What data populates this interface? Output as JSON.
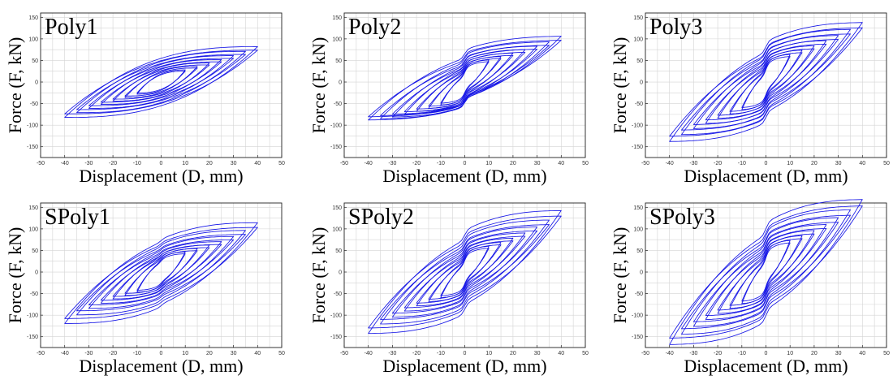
{
  "chart_data": [
    {
      "type": "line",
      "title": "Poly1",
      "xlabel": "Displacement (D, mm)",
      "ylabel": "Force (F, kN)",
      "xlim": [
        -50,
        50
      ],
      "ylim": [
        -175,
        160
      ],
      "grid": true,
      "x_ticks": [
        -50,
        -40,
        -30,
        -20,
        -10,
        0,
        10,
        20,
        30,
        40,
        50
      ],
      "y_ticks": [
        -150,
        -100,
        -50,
        0,
        50,
        100,
        150
      ],
      "series": [
        {
          "amplitudes_mm": [
            10,
            15,
            20,
            25,
            30,
            35,
            40
          ],
          "peak_force_pos_kN": [
            28,
            36,
            44,
            52,
            61,
            71,
            82
          ],
          "peak_force_neg_kN": [
            -28,
            -36,
            -44,
            -52,
            -61,
            -71,
            -82
          ],
          "slip_force_kN": 0
        }
      ]
    },
    {
      "type": "line",
      "title": "Poly2",
      "xlabel": "Displacement (D, mm)",
      "ylabel": "Force (F, kN)",
      "xlim": [
        -50,
        50
      ],
      "ylim": [
        -175,
        160
      ],
      "grid": true,
      "x_ticks": [
        -50,
        -40,
        -30,
        -20,
        -10,
        0,
        10,
        20,
        30,
        40,
        50
      ],
      "y_ticks": [
        -150,
        -100,
        -50,
        0,
        50,
        100,
        150
      ],
      "series": [
        {
          "amplitudes_mm": [
            10,
            15,
            20,
            25,
            30,
            35,
            40
          ],
          "peak_force_pos_kN": [
            38,
            46,
            54,
            62,
            70,
            80,
            93
          ],
          "peak_force_neg_kN": [
            -40,
            -48,
            -55,
            -62,
            -68,
            -72,
            -75
          ],
          "slip_force_kN": 18
        }
      ]
    },
    {
      "type": "line",
      "title": "Poly3",
      "xlabel": "Displacement (D, mm)",
      "ylabel": "Force (F, kN)",
      "xlim": [
        -50,
        50
      ],
      "ylim": [
        -175,
        160
      ],
      "grid": true,
      "x_ticks": [
        -50,
        -40,
        -30,
        -20,
        -10,
        0,
        10,
        20,
        30,
        40,
        50
      ],
      "y_ticks": [
        -150,
        -100,
        -50,
        0,
        50,
        100,
        150
      ],
      "series": [
        {
          "amplitudes_mm": [
            10,
            15,
            20,
            25,
            30,
            35,
            40
          ],
          "peak_force_pos_kN": [
            48,
            58,
            68,
            80,
            92,
            106,
            122
          ],
          "peak_force_neg_kN": [
            -48,
            -58,
            -68,
            -80,
            -92,
            -106,
            -122
          ],
          "slip_force_kN": 22
        }
      ]
    },
    {
      "type": "line",
      "title": "SPoly1",
      "xlabel": "Displacement (D, mm)",
      "ylabel": "Force (F, kN)",
      "xlim": [
        -50,
        50
      ],
      "ylim": [
        -175,
        160
      ],
      "grid": true,
      "x_ticks": [
        -50,
        -40,
        -30,
        -20,
        -10,
        0,
        10,
        20,
        30,
        40,
        50
      ],
      "y_ticks": [
        -150,
        -100,
        -50,
        0,
        50,
        100,
        150
      ],
      "series": [
        {
          "amplitudes_mm": [
            10,
            15,
            20,
            25,
            30,
            35,
            40
          ],
          "peak_force_pos_kN": [
            42,
            50,
            58,
            66,
            78,
            92,
            110
          ],
          "peak_force_neg_kN": [
            -42,
            -50,
            -58,
            -68,
            -80,
            -95,
            -115
          ],
          "slip_force_kN": 6
        }
      ]
    },
    {
      "type": "line",
      "title": "SPoly2",
      "xlabel": "Displacement (D, mm)",
      "ylabel": "Force (F, kN)",
      "xlim": [
        -50,
        50
      ],
      "ylim": [
        -175,
        160
      ],
      "grid": true,
      "x_ticks": [
        -50,
        -40,
        -30,
        -20,
        -10,
        0,
        10,
        20,
        30,
        40,
        50
      ],
      "y_ticks": [
        -150,
        -100,
        -50,
        0,
        50,
        100,
        150
      ],
      "series": [
        {
          "amplitudes_mm": [
            10,
            15,
            20,
            25,
            30,
            35,
            40
          ],
          "peak_force_pos_kN": [
            45,
            54,
            64,
            76,
            90,
            106,
            128
          ],
          "peak_force_neg_kN": [
            -45,
            -54,
            -64,
            -76,
            -90,
            -106,
            -128
          ],
          "slip_force_kN": 20
        }
      ]
    },
    {
      "type": "line",
      "title": "SPoly3",
      "xlabel": "Displacement (D, mm)",
      "ylabel": "Force (F, kN)",
      "xlim": [
        -50,
        50
      ],
      "ylim": [
        -175,
        160
      ],
      "grid": true,
      "x_ticks": [
        -50,
        -40,
        -30,
        -20,
        -10,
        0,
        10,
        20,
        30,
        40,
        50
      ],
      "y_ticks": [
        -150,
        -100,
        -50,
        0,
        50,
        100,
        150
      ],
      "series": [
        {
          "amplitudes_mm": [
            10,
            15,
            20,
            25,
            30,
            35,
            40
          ],
          "peak_force_pos_kN": [
            55,
            66,
            78,
            92,
            108,
            126,
            150
          ],
          "peak_force_neg_kN": [
            -55,
            -66,
            -78,
            -92,
            -108,
            -126,
            -150
          ],
          "slip_force_kN": 25
        }
      ]
    }
  ],
  "style": {
    "series_color": "#1414e6",
    "grid_color": "#d4d4d4",
    "frame_color": "#222222"
  }
}
